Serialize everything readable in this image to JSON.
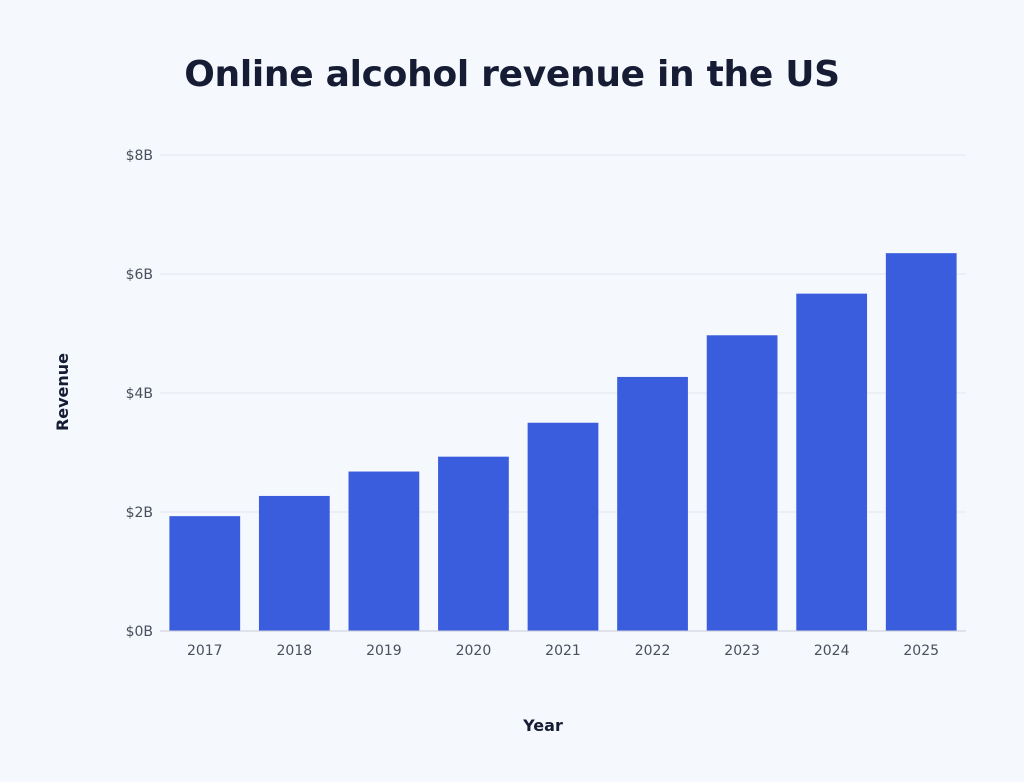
{
  "chart_data": {
    "type": "bar",
    "title": "Online alcohol revenue in the US",
    "xlabel": "Year",
    "ylabel": "Revenue",
    "categories": [
      "2017",
      "2018",
      "2019",
      "2020",
      "2021",
      "2022",
      "2023",
      "2024",
      "2025"
    ],
    "values": [
      1.93,
      2.27,
      2.68,
      2.93,
      3.5,
      4.27,
      4.97,
      5.67,
      6.35
    ],
    "unit": "billion USD",
    "ylim": [
      0,
      8
    ],
    "yticks": [
      0,
      2,
      4,
      6,
      8
    ],
    "ytick_labels": [
      "$0B",
      "$2B",
      "$4B",
      "$6B",
      "$8B"
    ],
    "grid": true,
    "legend": "none",
    "colors": {
      "bar": "#3a5ddd",
      "grid": "#e3e7ef",
      "axis": "#c9cdd6",
      "background": "#f5f8fd"
    }
  }
}
